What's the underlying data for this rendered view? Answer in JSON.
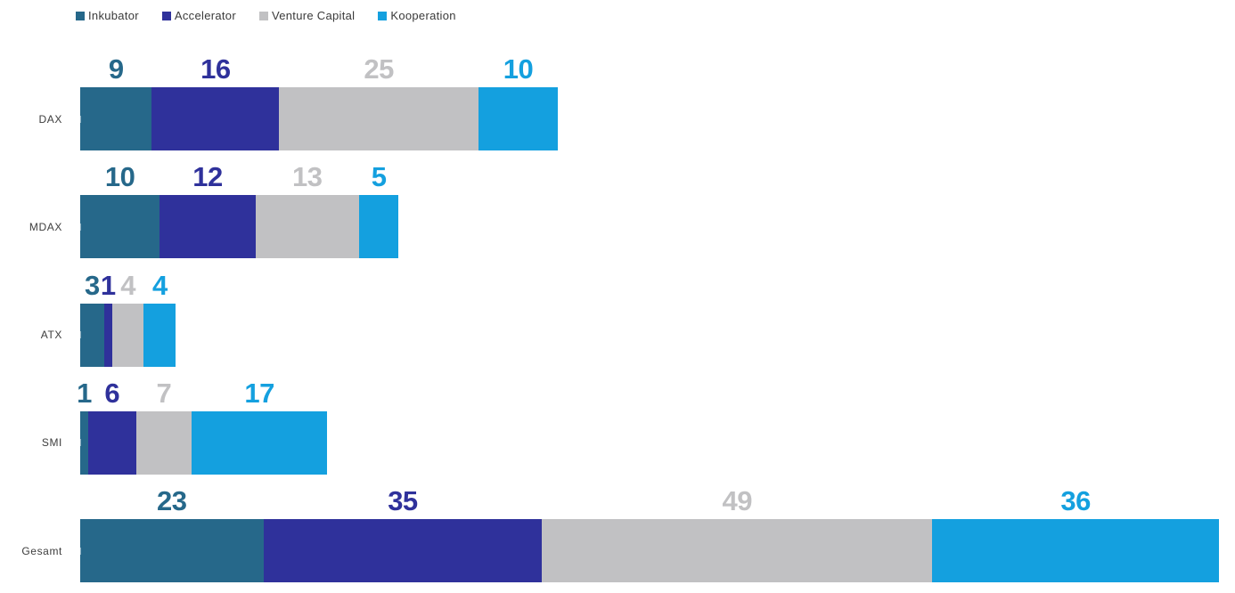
{
  "chart_data": {
    "type": "bar",
    "orientation": "horizontal",
    "stacked": true,
    "title": "",
    "xlabel": "",
    "ylabel": "",
    "categories": [
      "DAX",
      "MDAX",
      "ATX",
      "SMI",
      "Gesamt"
    ],
    "series": [
      {
        "name": "Inkubator",
        "color": "#26688A",
        "values": [
          9,
          10,
          3,
          1,
          23
        ]
      },
      {
        "name": "Accelerator",
        "color": "#2F319B",
        "values": [
          16,
          12,
          1,
          6,
          35
        ]
      },
      {
        "name": "Venture Capital",
        "color": "#C1C1C3",
        "values": [
          25,
          13,
          4,
          7,
          49
        ]
      },
      {
        "name": "Kooperation",
        "color": "#14A0DF",
        "values": [
          10,
          5,
          4,
          17,
          36
        ]
      }
    ],
    "totals": [
      60,
      40,
      12,
      31,
      143
    ],
    "value_labels": "above each segment, colored by series",
    "legend_position": "top-left",
    "xlim": [
      0,
      143
    ],
    "grid": false,
    "axes_visible": false
  }
}
